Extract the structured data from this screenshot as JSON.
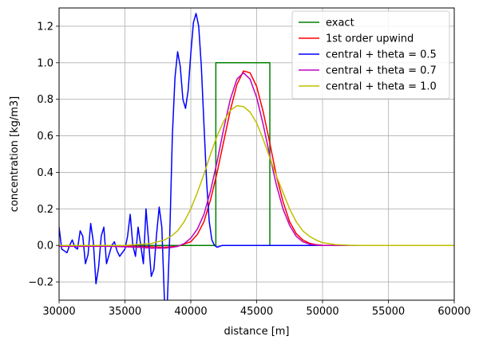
{
  "chart_data": {
    "type": "line",
    "xlabel": "distance [m]",
    "ylabel": "concentration [kg/m3]",
    "xlim": [
      30000,
      60000
    ],
    "ylim": [
      -0.3,
      1.3
    ],
    "xticks": [
      30000,
      35000,
      40000,
      45000,
      50000,
      55000,
      60000
    ],
    "yticks": [
      -0.2,
      0.0,
      0.2,
      0.4,
      0.6,
      0.8,
      1.0,
      1.2
    ],
    "xtick_labels": [
      "30000",
      "35000",
      "40000",
      "45000",
      "50000",
      "55000",
      "60000"
    ],
    "ytick_labels": [
      "−0.2",
      "0.0",
      "0.2",
      "0.4",
      "0.6",
      "0.8",
      "1.0",
      "1.2"
    ],
    "grid": true,
    "legend_position": "top-right",
    "series": [
      {
        "name": "exact",
        "color": "#008000",
        "x": [
          30000,
          41900,
          41900,
          46000,
          46000,
          60000
        ],
        "y": [
          0,
          0,
          1,
          1,
          0,
          0
        ]
      },
      {
        "name": "1st order upwind",
        "color": "#ff0000",
        "x": [
          30000,
          36000,
          38000,
          39000,
          40000,
          40500,
          41000,
          41500,
          42000,
          42500,
          43000,
          43500,
          44000,
          44500,
          45000,
          45500,
          46000,
          46500,
          47000,
          47500,
          48000,
          48500,
          49000,
          49500,
          50000,
          51000,
          53000,
          60000
        ],
        "y": [
          0,
          -0.005,
          -0.01,
          -0.005,
          0.02,
          0.06,
          0.13,
          0.25,
          0.4,
          0.57,
          0.74,
          0.88,
          0.955,
          0.945,
          0.87,
          0.73,
          0.56,
          0.38,
          0.24,
          0.13,
          0.065,
          0.03,
          0.012,
          0.004,
          0.001,
          0,
          0,
          0
        ]
      },
      {
        "name": "central + theta = 0.5",
        "color": "#0000ff",
        "x": [
          30000,
          30200,
          30400,
          30600,
          30800,
          31000,
          31200,
          31400,
          31600,
          31800,
          32000,
          32200,
          32400,
          32600,
          32800,
          33000,
          33200,
          33400,
          33600,
          33800,
          34000,
          34200,
          34400,
          34600,
          34800,
          35000,
          35200,
          35400,
          35600,
          35800,
          36000,
          36200,
          36400,
          36600,
          36800,
          37000,
          37200,
          37400,
          37600,
          37800,
          38000,
          38200,
          38400,
          38600,
          38800,
          39000,
          39200,
          39400,
          39600,
          39800,
          40000,
          40200,
          40400,
          40600,
          40800,
          41000,
          41200,
          41400,
          41600,
          41800,
          42000,
          42200,
          42400,
          42600,
          42800,
          43000,
          43200,
          43400,
          43600,
          43800,
          44000,
          44200,
          44400,
          44600,
          44800,
          45000,
          45200,
          45400,
          45600,
          45800,
          46000,
          46400,
          46800,
          47200,
          47600,
          48000,
          48500,
          49000,
          49500,
          50000,
          51000,
          53000,
          60000
        ],
        "y": [
          0.1,
          -0.02,
          -0.03,
          -0.04,
          0.0,
          0.03,
          -0.01,
          -0.02,
          0.08,
          0.05,
          -0.1,
          -0.05,
          0.12,
          0.02,
          -0.21,
          -0.12,
          0.05,
          0.1,
          -0.1,
          -0.05,
          0.0,
          0.02,
          -0.03,
          -0.06,
          -0.04,
          -0.02,
          0.05,
          0.17,
          0.0,
          -0.06,
          0.1,
          0.0,
          -0.1,
          0.2,
          0.02,
          -0.17,
          -0.13,
          0.06,
          0.21,
          0.1,
          -0.3,
          -0.35,
          0.05,
          0.6,
          0.92,
          1.06,
          0.98,
          0.8,
          0.75,
          0.85,
          1.05,
          1.22,
          1.27,
          1.2,
          0.98,
          0.66,
          0.35,
          0.13,
          0.03,
          0.0,
          -0.01,
          -0.005,
          0.0,
          0.0,
          0.0,
          0.0,
          0.0,
          0.0,
          0.0,
          0.0,
          0.0,
          0.0,
          0.0,
          0.0,
          0.0,
          0.0,
          0.0,
          0.0,
          0.0,
          0.0,
          0.0,
          0.0,
          0.0,
          0.0,
          0.0,
          0.0,
          0.0,
          0.0,
          0.0,
          0.0,
          0.0,
          0.0,
          0.0
        ]
      },
      {
        "name": "central + theta = 0.7",
        "color": "#c000c0",
        "x": [
          30000,
          34000,
          36000,
          37000,
          38000,
          38500,
          39000,
          39500,
          40000,
          40500,
          41000,
          41500,
          42000,
          42500,
          43000,
          43500,
          44000,
          44500,
          45000,
          45500,
          46000,
          46500,
          47000,
          47500,
          48000,
          48500,
          49000,
          49500,
          50000,
          51000,
          53000,
          60000
        ],
        "y": [
          -0.005,
          -0.005,
          -0.01,
          -0.015,
          -0.015,
          -0.012,
          -0.005,
          0.01,
          0.04,
          0.09,
          0.17,
          0.3,
          0.46,
          0.64,
          0.8,
          0.91,
          0.945,
          0.91,
          0.81,
          0.66,
          0.49,
          0.33,
          0.2,
          0.11,
          0.05,
          0.02,
          0.007,
          0.002,
          0.0,
          0.0,
          0.0,
          0.0
        ]
      },
      {
        "name": "central + theta = 1.0",
        "color": "#bfbf00",
        "x": [
          30000,
          35000,
          36000,
          37000,
          38000,
          38500,
          39000,
          39500,
          40000,
          40500,
          41000,
          41500,
          42000,
          42500,
          43000,
          43500,
          44000,
          44500,
          45000,
          45500,
          46000,
          46500,
          47000,
          47500,
          48000,
          48500,
          49000,
          49500,
          50000,
          51000,
          52000,
          53000,
          60000
        ],
        "y": [
          0.0,
          0.0,
          0.005,
          0.01,
          0.03,
          0.05,
          0.08,
          0.13,
          0.2,
          0.29,
          0.39,
          0.5,
          0.6,
          0.68,
          0.74,
          0.765,
          0.76,
          0.73,
          0.67,
          0.58,
          0.48,
          0.38,
          0.29,
          0.2,
          0.13,
          0.08,
          0.05,
          0.03,
          0.015,
          0.004,
          0.001,
          0.0,
          0.0
        ]
      }
    ]
  }
}
